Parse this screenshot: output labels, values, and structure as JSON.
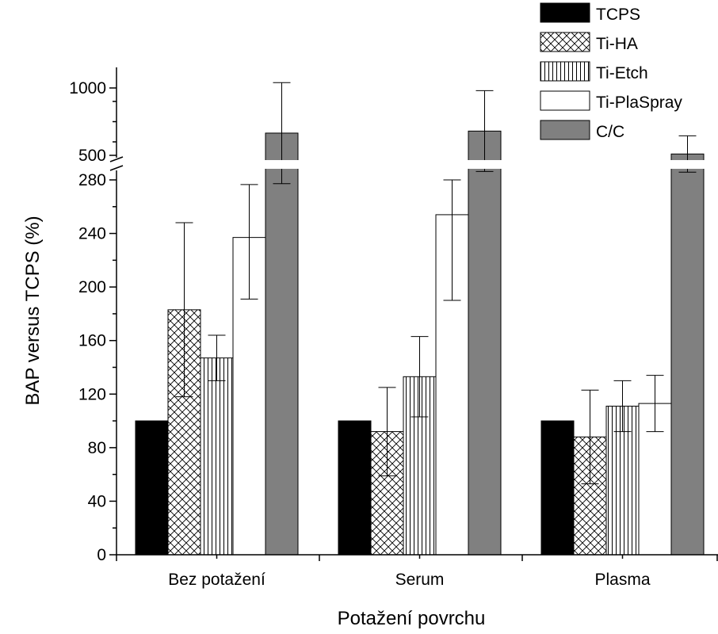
{
  "chart_data": {
    "type": "bar",
    "xlabel": "Potažení povrchu",
    "ylabel": "BAP versus TCPS (%)",
    "categories": [
      "Bez potažení",
      "Serum",
      "Plasma"
    ],
    "y_axis_break": [
      280,
      500
    ],
    "ylim_lower": [
      0,
      280
    ],
    "ylim_upper": [
      500,
      1000
    ],
    "y_ticks_lower": [
      "0",
      "40",
      "80",
      "120",
      "160",
      "200",
      "240",
      "280"
    ],
    "y_ticks_upper": [
      "500",
      "1000"
    ],
    "legend_position": "top-right",
    "series": [
      {
        "name": "TCPS",
        "fill": "solid-black",
        "color": "#000000",
        "values": [
          100,
          100,
          100
        ],
        "error": [
          0,
          0,
          0
        ]
      },
      {
        "name": "Ti-HA",
        "fill": "crosshatch",
        "color": "#000000",
        "values": [
          183,
          92,
          88
        ],
        "error": [
          65,
          33,
          35
        ]
      },
      {
        "name": "Ti-Etch",
        "fill": "vertical-lines",
        "color": "#000000",
        "values": [
          147,
          133,
          111
        ],
        "error": [
          17,
          30,
          19
        ]
      },
      {
        "name": "Ti-PlaSpray",
        "fill": "white",
        "color": "#ffffff",
        "values": [
          237,
          254,
          113
        ],
        "error": [
          46,
          64,
          21
        ]
      },
      {
        "name": "C/C",
        "fill": "solid-gray",
        "color": "#808080",
        "values": [
          665,
          680,
          510
        ],
        "error": [
          375,
          300,
          135
        ]
      }
    ]
  }
}
